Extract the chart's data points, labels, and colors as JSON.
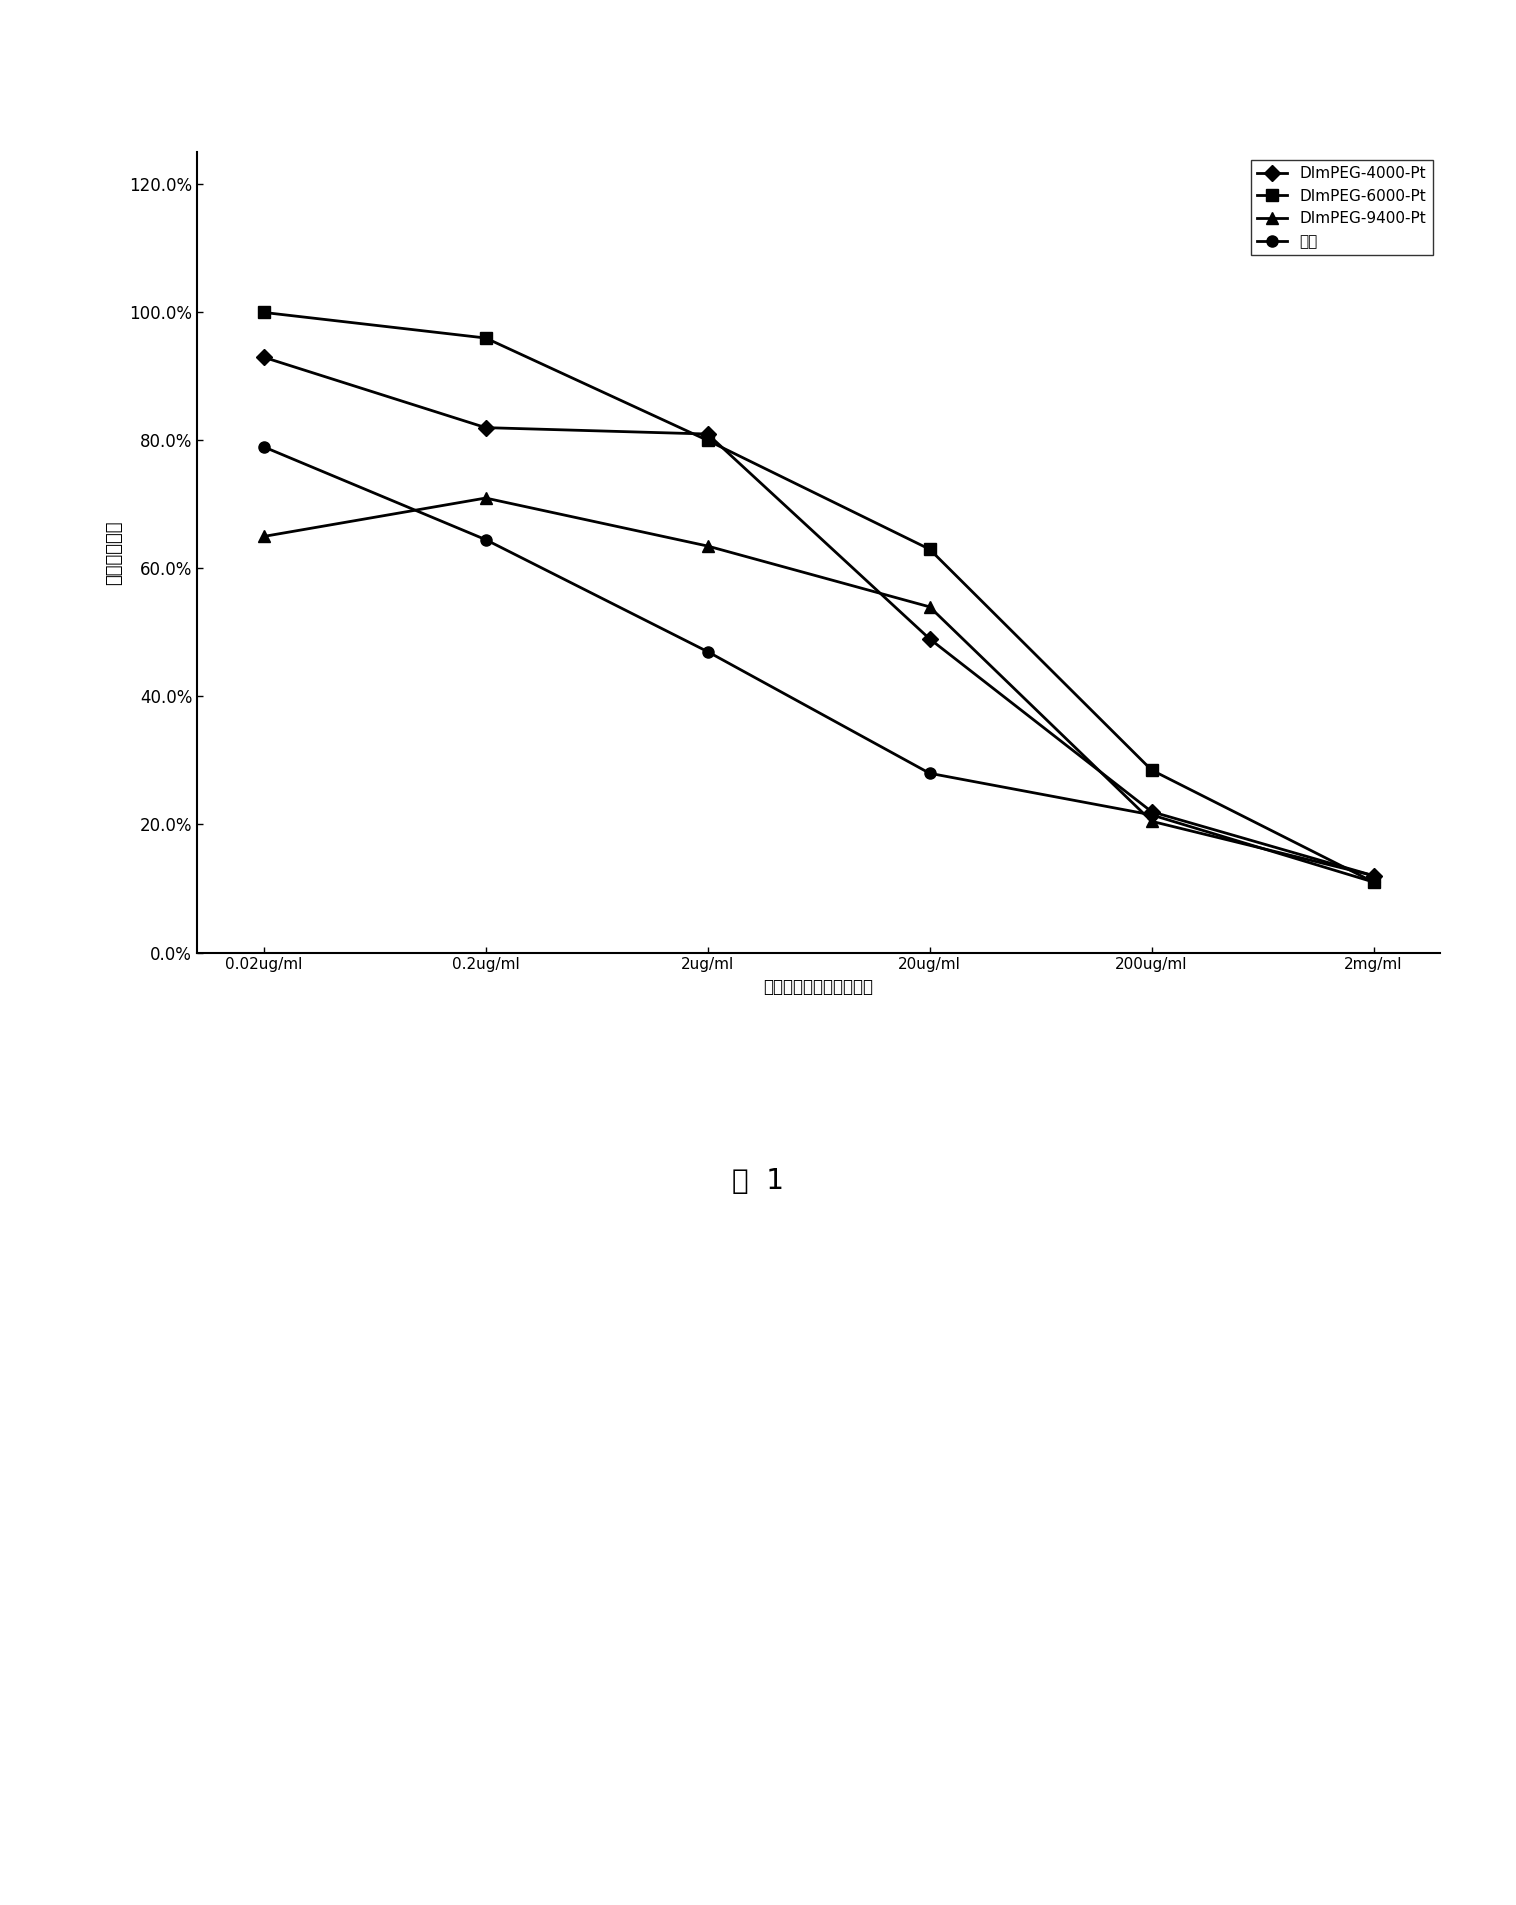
{
  "x_labels": [
    "0.02ug/ml",
    "0.2ug/ml",
    "2ug/ml",
    "20ug/ml",
    "200ug/ml",
    "2mg/ml"
  ],
  "series": [
    {
      "label": "DImPEG-4000-Pt",
      "values": [
        0.93,
        0.82,
        0.81,
        0.49,
        0.22,
        0.12
      ],
      "marker": "D",
      "color": "#000000",
      "linewidth": 2.0,
      "markersize": 8
    },
    {
      "label": "DImPEG-6000-Pt",
      "values": [
        1.0,
        0.96,
        0.8,
        0.63,
        0.285,
        0.11
      ],
      "marker": "s",
      "color": "#000000",
      "linewidth": 2.0,
      "markersize": 8
    },
    {
      "label": "DImPEG-9400-Pt",
      "values": [
        0.65,
        0.71,
        0.635,
        0.54,
        0.205,
        0.12
      ],
      "marker": "^",
      "color": "#000000",
      "linewidth": 2.0,
      "markersize": 8
    },
    {
      "label": "顺铂",
      "values": [
        0.79,
        0.645,
        0.47,
        0.28,
        0.215,
        0.11
      ],
      "marker": "o",
      "color": "#000000",
      "linewidth": 2.0,
      "markersize": 8
    }
  ],
  "ylabel": "细胞存活分数",
  "xlabel": "药物浓度（折算为顺铂）",
  "yticks": [
    0.0,
    0.2,
    0.4,
    0.6,
    0.8,
    1.0,
    1.2
  ],
  "ytick_labels": [
    "0.0%",
    "20.0%",
    "40.0%",
    "60.0%",
    "80.0%",
    "100.0%",
    "120.0%"
  ],
  "ylim": [
    0.0,
    1.25
  ],
  "figsize_inches": [
    15.16,
    19.05
  ],
  "dpi": 100,
  "title_bottom": "图  1",
  "background_color": "#ffffff",
  "legend_loc": "upper right"
}
